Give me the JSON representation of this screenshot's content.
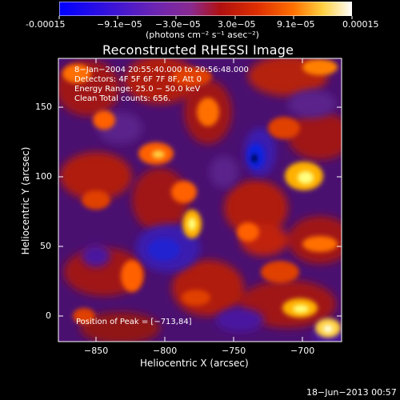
{
  "colorbar": {
    "ticks": [
      "-0.00015",
      "−9.1e−05",
      "−3.0e−05",
      "3.0e−05",
      "9.1e−05",
      "0.00015"
    ],
    "unit_label": "(photons cm⁻² s⁻¹ asec⁻²)",
    "colors": [
      "#0000ff",
      "#5a00c8",
      "#8a2aa0",
      "#a02020",
      "#d02000",
      "#ff6000",
      "#ffb000",
      "#ffff80",
      "#ffffff"
    ]
  },
  "image": {
    "title": "Reconstructed RHESSI Image",
    "info_lines": [
      "8−Jan−2004 20:55:40.000 to 20:56:48.000",
      "Detectors: 4F 5F 6F 7F 8F, Att 0",
      "Energy Range: 25.0 − 50.0 keV",
      "Clean      Total counts: 656."
    ],
    "peak_text": "Position of Peak = [−713,84]"
  },
  "axes": {
    "xlabel": "Heliocentric X (arcsec)",
    "ylabel": "Heliocentric Y (arcsec)",
    "x_ticks": [
      "−850",
      "−800",
      "−750",
      "−700"
    ],
    "y_ticks": [
      "0",
      "50",
      "100",
      "150"
    ]
  },
  "footer": {
    "date": "18−Jun−2013 00:57"
  }
}
